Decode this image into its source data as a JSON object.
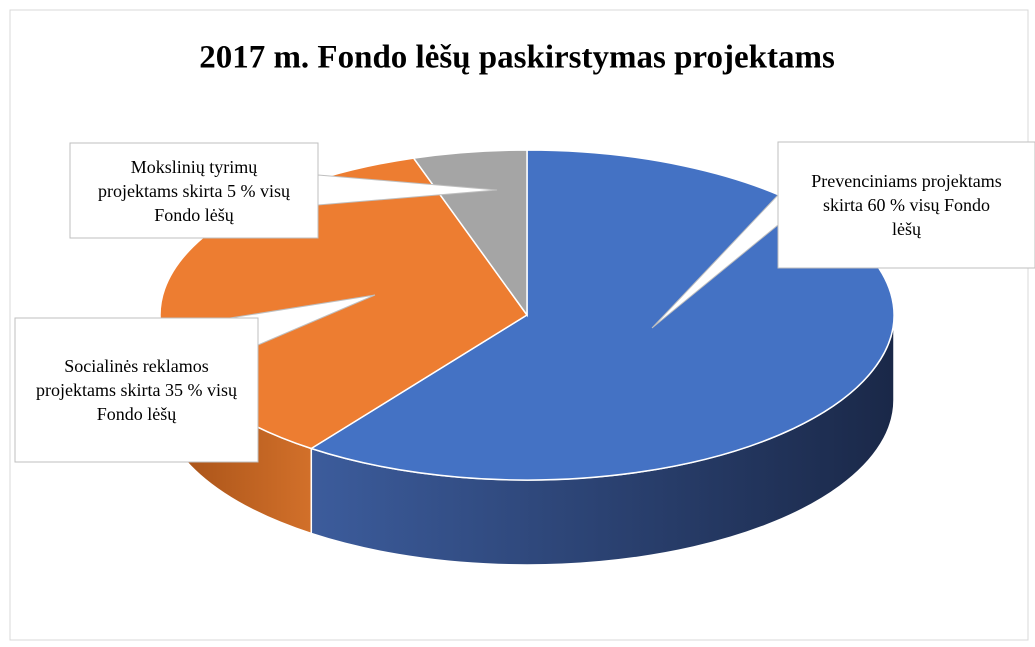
{
  "chart_data": {
    "type": "pie3d",
    "title": "2017 m. Fondo lėšų paskirstymas  projektams",
    "values": [
      60,
      35,
      5
    ],
    "value_labels": [
      "Prevenciniams projektams skirta 60 % visų Fondo lėšų",
      "Socialinės reklamos projektams skirta 35 % visų Fondo lėšų",
      "Mokslinių tyrimų projektams skirta 5 % visų Fondo lėšų"
    ],
    "colors": [
      "#4472c4",
      "#ed7d31",
      "#a5a5a5"
    ]
  }
}
